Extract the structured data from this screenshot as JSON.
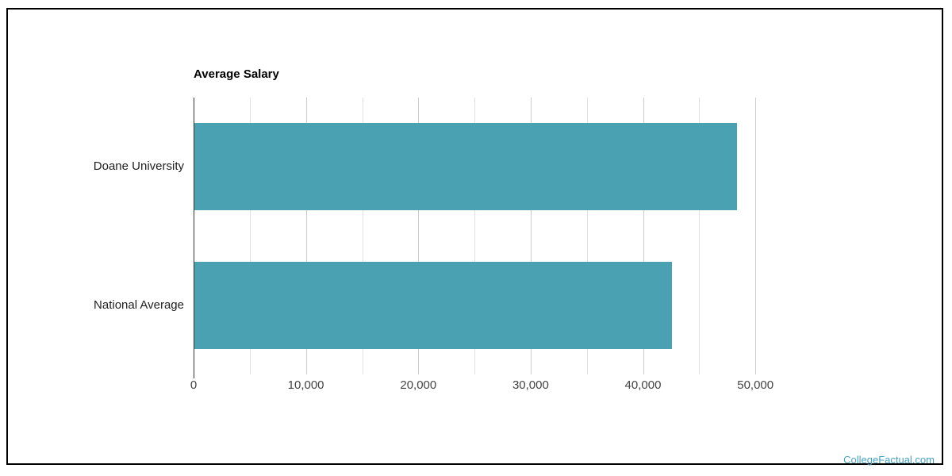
{
  "chart_data": {
    "type": "bar",
    "orientation": "horizontal",
    "title": "Average Salary",
    "categories": [
      "Doane University",
      "National Average"
    ],
    "values": [
      48300,
      42500
    ],
    "bar_color": "#49A1B2",
    "xlim": [
      0,
      55000
    ],
    "x_major_ticks": [
      0,
      10000,
      20000,
      30000,
      40000,
      50000
    ],
    "x_tick_labels": [
      "0",
      "10,000",
      "20,000",
      "30,000",
      "40,000",
      "50,000"
    ],
    "x_minor_step": 5000,
    "xlabel": "",
    "ylabel": "",
    "gridlines": true,
    "legend": "none"
  },
  "watermark": {
    "text": "CollegeFactual.com",
    "color": "#48A3C4"
  }
}
